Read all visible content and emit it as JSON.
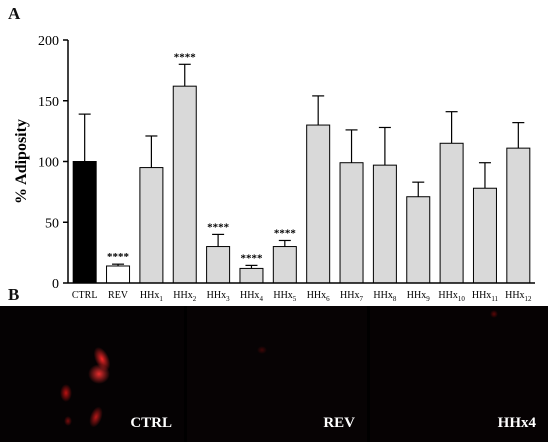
{
  "figure": {
    "panel_a_label": "A",
    "panel_b_label": "B"
  },
  "chart_data": {
    "type": "bar",
    "ylabel": "% Adiposity",
    "xlabel": "",
    "ylim": [
      0,
      200
    ],
    "yticks": [
      0,
      50,
      100,
      150,
      200
    ],
    "categories": [
      {
        "base": "CTRL",
        "sub": ""
      },
      {
        "base": "REV",
        "sub": ""
      },
      {
        "base": "HHx",
        "sub": "1"
      },
      {
        "base": "HHx",
        "sub": "2"
      },
      {
        "base": "HHx",
        "sub": "3"
      },
      {
        "base": "HHx",
        "sub": "4"
      },
      {
        "base": "HHx",
        "sub": "5"
      },
      {
        "base": "HHx",
        "sub": "6"
      },
      {
        "base": "HHx",
        "sub": "7"
      },
      {
        "base": "HHx",
        "sub": "8"
      },
      {
        "base": "HHx",
        "sub": "9"
      },
      {
        "base": "HHx",
        "sub": "10"
      },
      {
        "base": "HHx",
        "sub": "11"
      },
      {
        "base": "HHx",
        "sub": "12"
      }
    ],
    "values": [
      100,
      14,
      95,
      162,
      30,
      12,
      30,
      130,
      99,
      97,
      71,
      115,
      78,
      111
    ],
    "errors": [
      39,
      1.5,
      26,
      18,
      10,
      2.5,
      5,
      24,
      27,
      31,
      12,
      26,
      21,
      21
    ],
    "significance": [
      "",
      "****",
      "",
      "****",
      "****",
      "****",
      "****",
      "",
      "",
      "",
      "",
      "",
      "",
      ""
    ],
    "colors": [
      "#000000",
      "#ffffff",
      "#d9d9d9",
      "#d9d9d9",
      "#d9d9d9",
      "#d9d9d9",
      "#d9d9d9",
      "#d9d9d9",
      "#d9d9d9",
      "#d9d9d9",
      "#d9d9d9",
      "#d9d9d9",
      "#d9d9d9",
      "#d9d9d9"
    ],
    "grid": false
  },
  "images": [
    {
      "label": "CTRL"
    },
    {
      "label": "REV"
    },
    {
      "label": "HHx4"
    }
  ]
}
